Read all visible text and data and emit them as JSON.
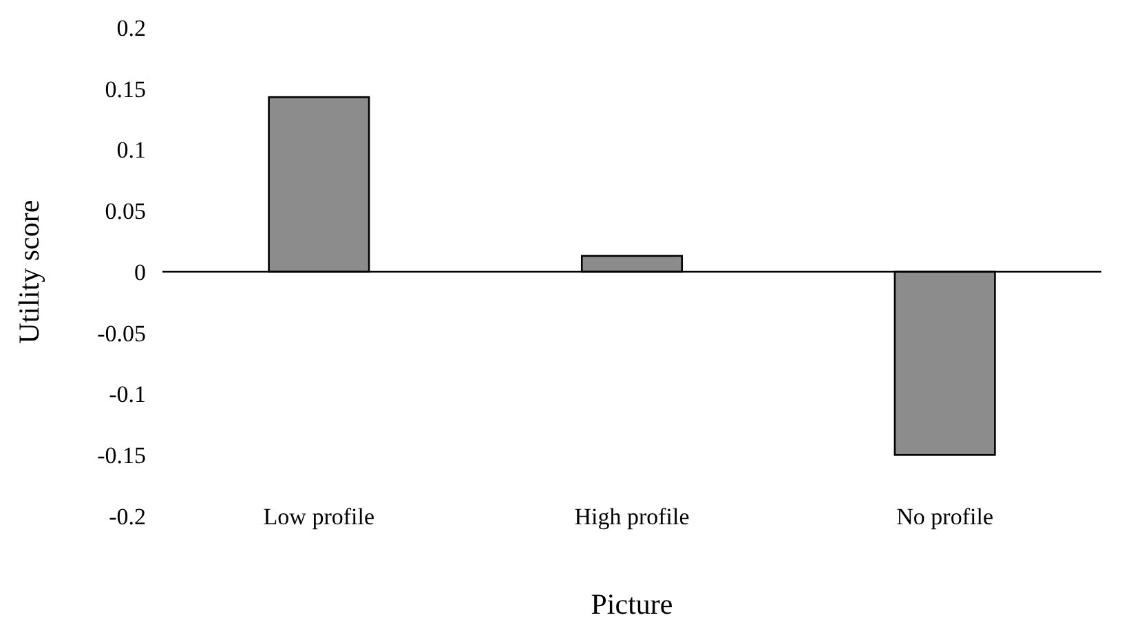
{
  "chart_data": {
    "type": "bar",
    "xlabel": "Picture",
    "ylabel": "Utility score",
    "categories": [
      "Low profile",
      "High profile",
      "No profile"
    ],
    "values": [
      0.143,
      0.013,
      -0.15
    ],
    "color": "#8c8c8c",
    "ylim": [
      -0.2,
      0.2
    ],
    "yticks": [
      -0.2,
      -0.15,
      -0.1,
      -0.05,
      0,
      0.05,
      0.1,
      0.15,
      0.2
    ]
  }
}
